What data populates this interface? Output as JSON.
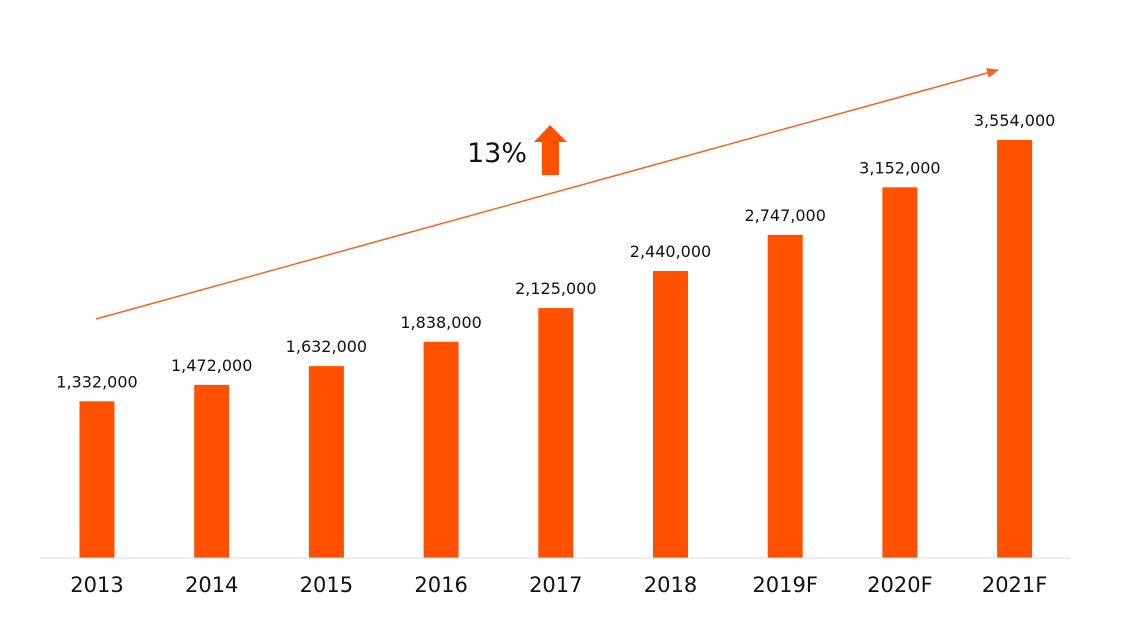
{
  "chart_data": {
    "type": "bar",
    "categories": [
      "2013",
      "2014",
      "2015",
      "2016",
      "2017",
      "2018",
      "2019F",
      "2020F",
      "2021F"
    ],
    "values": [
      1332000,
      1472000,
      1632000,
      1838000,
      2125000,
      2440000,
      2747000,
      3152000,
      3554000
    ],
    "data_labels": [
      "1,332,000",
      "1,472,000",
      "1,632,000",
      "1,838,000",
      "2,125,000",
      "2,440,000",
      "2,747,000",
      "3,152,000",
      "3,554,000"
    ],
    "ylim": [
      0,
      3554000
    ],
    "grid": false,
    "legend": "none",
    "annotation": {
      "text": "13%",
      "icon": "up-arrow-icon",
      "trend": "increasing"
    }
  },
  "colors": {
    "bar": "#FF5100",
    "trend_line": "#F26522",
    "baseline": "#D9D9D9",
    "text": "#111111"
  }
}
